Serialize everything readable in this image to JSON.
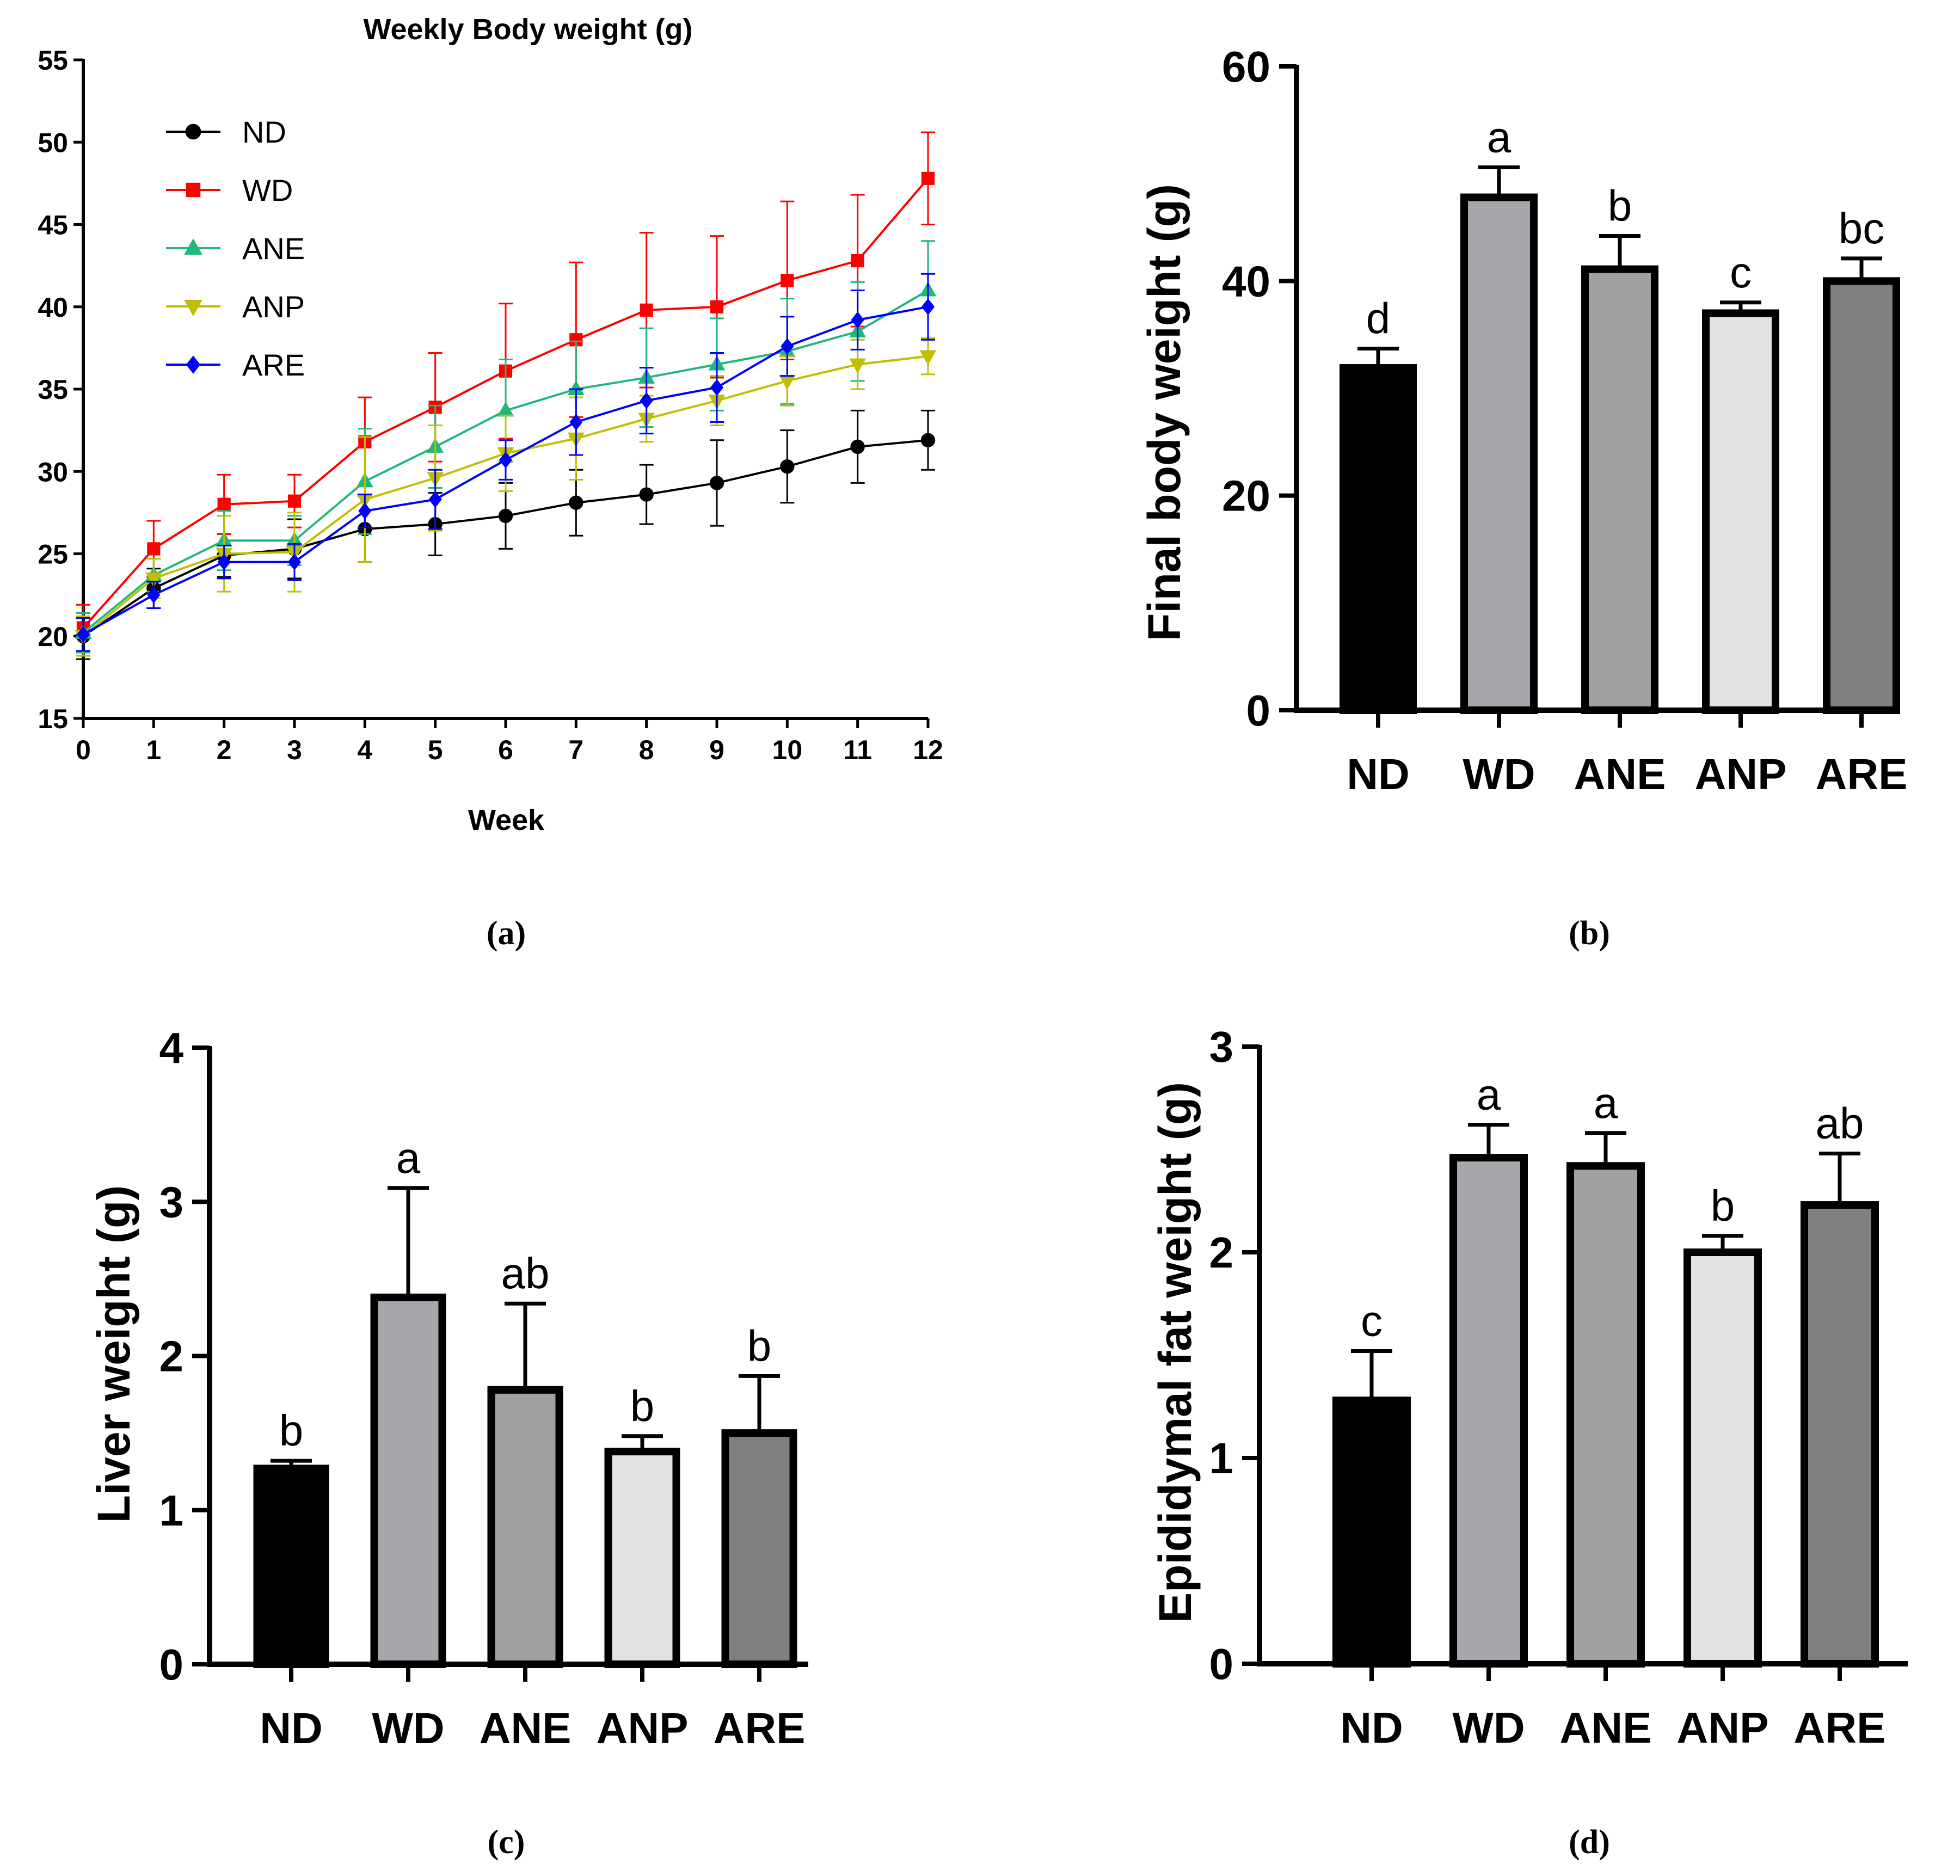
{
  "chart_data": [
    {
      "panel": "(a)",
      "type": "line",
      "title": "Weekly Body weight (g)",
      "xlabel": "Week",
      "ylabel": "",
      "xlim": [
        0,
        12
      ],
      "ylim": [
        15,
        55
      ],
      "xticks": [
        "0",
        "1",
        "2",
        "3",
        "4",
        "5",
        "6",
        "7",
        "8",
        "9",
        "10",
        "11",
        "12"
      ],
      "yticks": [
        "15",
        "20",
        "25",
        "30",
        "35",
        "40",
        "45",
        "50",
        "55"
      ],
      "legend_position": "top-left",
      "x": [
        0,
        1,
        2,
        3,
        4,
        5,
        6,
        7,
        8,
        9,
        10,
        11,
        12
      ],
      "series": [
        {
          "name": "ND",
          "color": "#000000",
          "marker": "circle",
          "values": [
            20.0,
            22.9,
            24.9,
            25.3,
            26.5,
            26.8,
            27.3,
            28.1,
            28.6,
            29.3,
            30.3,
            31.5,
            31.9
          ],
          "errors": [
            1.4,
            1.2,
            1.3,
            1.8,
            2.0,
            1.9,
            2.0,
            2.0,
            1.8,
            2.6,
            2.2,
            2.2,
            1.8
          ]
        },
        {
          "name": "WD",
          "color": "#ff0000",
          "marker": "square",
          "values": [
            20.5,
            25.3,
            28.0,
            28.2,
            31.8,
            33.9,
            36.1,
            38.0,
            39.8,
            40.0,
            41.6,
            42.8,
            47.8
          ],
          "errors": [
            1.4,
            1.7,
            1.8,
            1.6,
            2.7,
            3.3,
            4.1,
            4.7,
            4.7,
            4.3,
            4.8,
            4.0,
            2.8
          ]
        },
        {
          "name": "ANE",
          "color": "#1fb87a",
          "marker": "triangle-up",
          "values": [
            20.2,
            23.7,
            25.8,
            25.8,
            29.4,
            31.5,
            33.7,
            35.0,
            35.7,
            36.5,
            37.3,
            38.5,
            41.0
          ],
          "errors": [
            1.2,
            1.0,
            1.8,
            1.5,
            3.2,
            2.5,
            3.1,
            2.9,
            3.0,
            2.8,
            3.2,
            3.0,
            3.0
          ]
        },
        {
          "name": "ANP",
          "color": "#bfbf00",
          "marker": "triangle-down",
          "values": [
            20.0,
            23.5,
            25.0,
            25.1,
            28.3,
            29.6,
            31.1,
            32.0,
            33.2,
            34.3,
            35.5,
            36.5,
            37.0
          ],
          "errors": [
            1.2,
            1.2,
            2.3,
            2.4,
            3.8,
            3.2,
            2.3,
            2.5,
            1.4,
            1.5,
            1.5,
            1.5,
            1.1
          ]
        },
        {
          "name": "ARE",
          "color": "#0000ff",
          "marker": "diamond",
          "values": [
            20.1,
            22.5,
            24.5,
            24.5,
            27.6,
            28.3,
            30.7,
            33.0,
            34.3,
            35.1,
            37.6,
            39.2,
            40.0
          ],
          "errors": [
            1.0,
            0.8,
            1.0,
            1.1,
            1.0,
            1.8,
            1.2,
            2.0,
            2.0,
            2.1,
            1.8,
            1.8,
            2.0
          ]
        }
      ]
    },
    {
      "panel": "(b)",
      "type": "bar",
      "ylabel": "Final body weight (g)",
      "ylim": [
        0,
        60
      ],
      "yticks": [
        "0",
        "20",
        "40",
        "60"
      ],
      "categories": [
        "ND",
        "WD",
        "ANE",
        "ANP",
        "ARE"
      ],
      "values": [
        31.9,
        47.8,
        41.1,
        37.0,
        40.0
      ],
      "errors": [
        1.8,
        2.8,
        3.1,
        1.0,
        2.1
      ],
      "letters": [
        "d",
        "a",
        "b",
        "c",
        "bc"
      ],
      "fills": [
        "#000000",
        "#a6a7ab",
        "#a0a0a0",
        "#e2e2e2",
        "#7f7f7f"
      ]
    },
    {
      "panel": "(c)",
      "type": "bar",
      "ylabel": "Liver weight (g)",
      "ylim": [
        0,
        4
      ],
      "yticks": [
        "0",
        "1",
        "2",
        "3",
        "4"
      ],
      "categories": [
        "ND",
        "WD",
        "ANE",
        "ANP",
        "ARE"
      ],
      "values": [
        1.27,
        2.38,
        1.78,
        1.38,
        1.5
      ],
      "errors": [
        0.05,
        0.71,
        0.56,
        0.1,
        0.37
      ],
      "letters": [
        "b",
        "a",
        "ab",
        "b",
        "b"
      ],
      "fills": [
        "#000000",
        "#a6a7ab",
        "#a0a0a0",
        "#e2e2e2",
        "#7f7f7f"
      ]
    },
    {
      "panel": "(d)",
      "type": "bar",
      "ylabel": "Epididymal fat weight (g)",
      "ylim": [
        0,
        3
      ],
      "yticks": [
        "0",
        "1",
        "2",
        "3"
      ],
      "categories": [
        "ND",
        "WD",
        "ANE",
        "ANP",
        "ARE"
      ],
      "values": [
        1.28,
        2.46,
        2.42,
        2.0,
        2.23
      ],
      "errors": [
        0.24,
        0.16,
        0.16,
        0.08,
        0.25
      ],
      "letters": [
        "c",
        "a",
        "a",
        "b",
        "ab"
      ],
      "fills": [
        "#000000",
        "#a6a7ab",
        "#a0a0a0",
        "#e2e2e2",
        "#7f7f7f"
      ]
    }
  ]
}
